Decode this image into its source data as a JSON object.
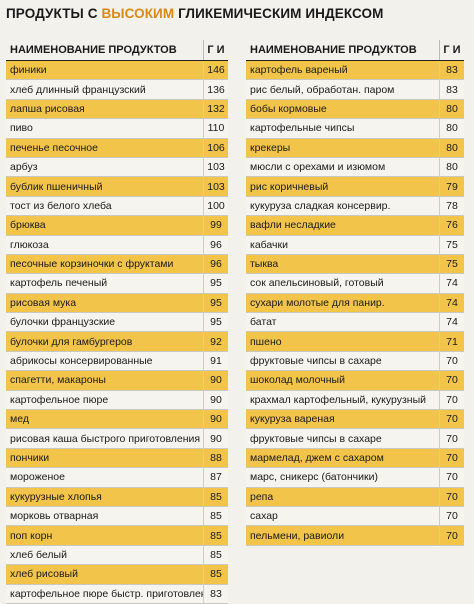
{
  "title": {
    "prefix": "ПРОДУКТЫ С",
    "highlight": "ВЫСОКИМ",
    "suffix": "ГЛИКЕМИЧЕСКИМ ИНДЕКСОМ"
  },
  "colors": {
    "accent": "#f2c54a",
    "highlight_text": "#d98a14"
  },
  "left_table": {
    "header": {
      "name": "НАИМЕНОВАНИЕ ПРОДУКТОВ",
      "gi": "Г И"
    },
    "rows": [
      {
        "name": "финики",
        "gi": "146"
      },
      {
        "name": "хлеб длинный французский",
        "gi": "136"
      },
      {
        "name": "лапша рисовая",
        "gi": "132"
      },
      {
        "name": "пиво",
        "gi": "110"
      },
      {
        "name": "печенье песочное",
        "gi": "106"
      },
      {
        "name": "арбуз",
        "gi": "103"
      },
      {
        "name": "бублик пшеничный",
        "gi": "103"
      },
      {
        "name": "тост из белого хлеба",
        "gi": "100"
      },
      {
        "name": "брюква",
        "gi": "99"
      },
      {
        "name": "глюкоза",
        "gi": "96"
      },
      {
        "name": "песочные корзиночки с фруктами",
        "gi": "96"
      },
      {
        "name": "картофель печеный",
        "gi": "95"
      },
      {
        "name": "рисовая мука",
        "gi": "95"
      },
      {
        "name": "булочки французские",
        "gi": "95"
      },
      {
        "name": "булочки для гамбургеров",
        "gi": "92"
      },
      {
        "name": "абрикосы консервированные",
        "gi": "91"
      },
      {
        "name": "спагетти, макароны",
        "gi": "90"
      },
      {
        "name": "картофельное пюре",
        "gi": "90"
      },
      {
        "name": "мед",
        "gi": "90"
      },
      {
        "name": "рисовая каша быстрого приготовления",
        "gi": "90"
      },
      {
        "name": "пончики",
        "gi": "88"
      },
      {
        "name": "мороженое",
        "gi": "87"
      },
      {
        "name": "кукурузные хлопья",
        "gi": "85"
      },
      {
        "name": "морковь отварная",
        "gi": "85"
      },
      {
        "name": "поп корн",
        "gi": "85"
      },
      {
        "name": "хлеб белый",
        "gi": "85"
      },
      {
        "name": "хлеб рисовый",
        "gi": "85"
      },
      {
        "name": "картофельное пюре быстр. приготовления",
        "gi": "83"
      }
    ]
  },
  "right_table": {
    "header": {
      "name": "НАИМЕНОВАНИЕ ПРОДУКТОВ",
      "gi": "Г И"
    },
    "rows": [
      {
        "name": "картофель вареный",
        "gi": "83"
      },
      {
        "name": "рис белый, обработан. паром",
        "gi": "83"
      },
      {
        "name": "бобы кормовые",
        "gi": "80"
      },
      {
        "name": "картофельные чипсы",
        "gi": "80"
      },
      {
        "name": "крекеры",
        "gi": "80"
      },
      {
        "name": "мюсли с орехами и изюмом",
        "gi": "80"
      },
      {
        "name": "рис коричневый",
        "gi": "79"
      },
      {
        "name": "кукуруза сладкая консервир.",
        "gi": "78"
      },
      {
        "name": "вафли несладкие",
        "gi": "76"
      },
      {
        "name": "кабачки",
        "gi": "75"
      },
      {
        "name": "тыква",
        "gi": "75"
      },
      {
        "name": "сок апельсиновый, готовый",
        "gi": "74"
      },
      {
        "name": "сухари молотые для панир.",
        "gi": "74"
      },
      {
        "name": "батат",
        "gi": "74"
      },
      {
        "name": "пшено",
        "gi": "71"
      },
      {
        "name": "фруктовые чипсы в сахаре",
        "gi": "70"
      },
      {
        "name": "шоколад молочный",
        "gi": "70"
      },
      {
        "name": "крахмал картофельный, кукурузный",
        "gi": "70"
      },
      {
        "name": "кукуруза вареная",
        "gi": "70"
      },
      {
        "name": "фруктовые чипсы в сахаре",
        "gi": "70"
      },
      {
        "name": "мармелад, джем с сахаром",
        "gi": "70"
      },
      {
        "name": "марс, сникерс (батончики)",
        "gi": "70"
      },
      {
        "name": "репа",
        "gi": "70"
      },
      {
        "name": "сахар",
        "gi": "70"
      },
      {
        "name": "пельмени, равиоли",
        "gi": "70"
      }
    ]
  }
}
